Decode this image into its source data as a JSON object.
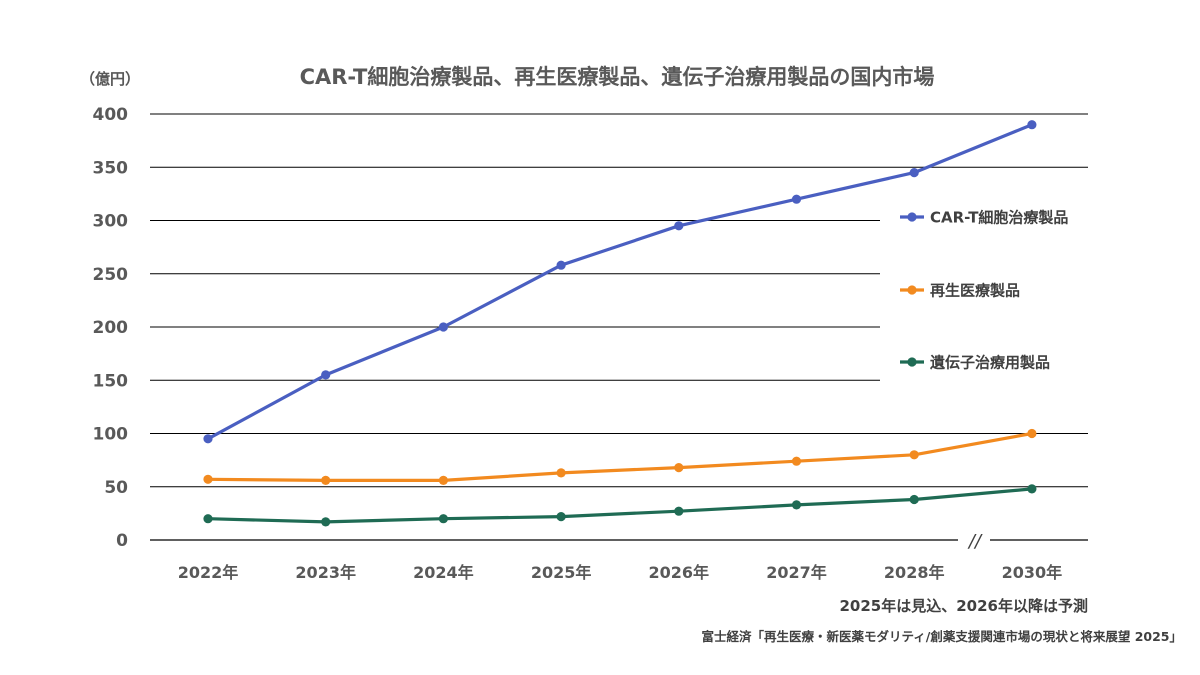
{
  "chart_data": {
    "type": "line",
    "title": "CAR-T細胞治療製品、再生医療製品、遺伝子治療用製品の国内市場",
    "unit_label": "（億円）",
    "categories": [
      "2022年",
      "2023年",
      "2024年",
      "2025年",
      "2026年",
      "2027年",
      "2028年",
      "2030年"
    ],
    "y_ticks": [
      "0",
      "50",
      "100",
      "150",
      "200",
      "250",
      "300",
      "350",
      "400"
    ],
    "ylim": [
      0,
      400
    ],
    "grid": true,
    "legend_position": "right",
    "axis_break_mark": "//",
    "series": [
      {
        "name": "CAR-T細胞治療製品",
        "color": "#4A5FC1",
        "values": [
          95,
          155,
          200,
          258,
          295,
          320,
          345,
          390
        ]
      },
      {
        "name": "再生医療製品",
        "color": "#F28A1F",
        "values": [
          57,
          56,
          56,
          63,
          68,
          74,
          80,
          100
        ]
      },
      {
        "name": "遺伝子治療用製品",
        "color": "#1F6B54",
        "values": [
          20,
          17,
          20,
          22,
          27,
          33,
          38,
          48
        ]
      }
    ],
    "note": "2025年は見込、2026年以降は予測",
    "source": "富士経済「再生医療・新医薬モダリティ/創薬支援関連市場の現状と将来展望 2025」"
  }
}
